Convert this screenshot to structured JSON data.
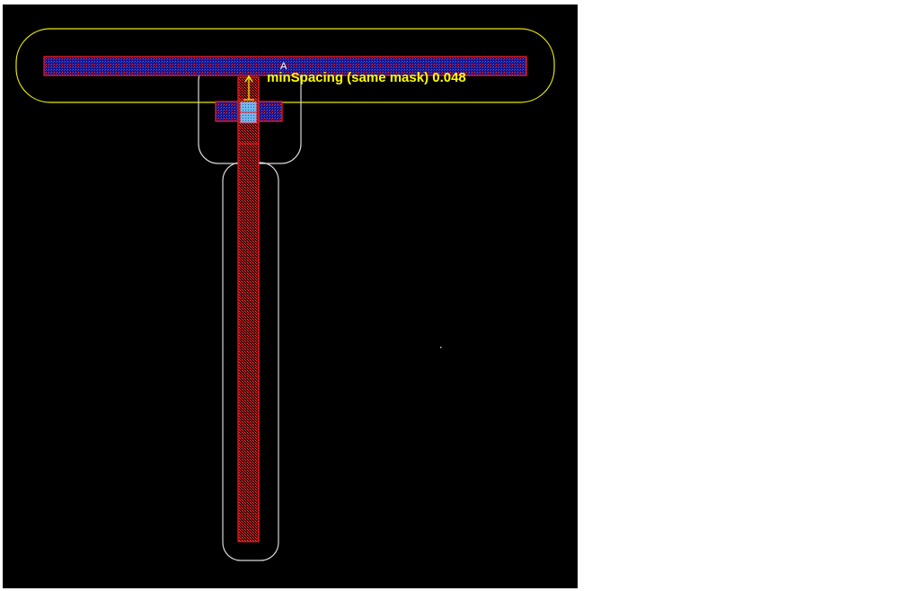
{
  "colors": {
    "background": "#000000",
    "page": "#ffffff",
    "metal_outline": "#ff1a1a",
    "metal_fill": "#1a1aa0",
    "via_fill": "#7fc8ff",
    "halo_yellow": "#e8e800",
    "halo_white": "#d8d8d8",
    "marker": "#ffffff",
    "label": "#ffff00"
  },
  "drc": {
    "message": "minSpacing (same mask) 0.048",
    "marker_letter": "A"
  }
}
